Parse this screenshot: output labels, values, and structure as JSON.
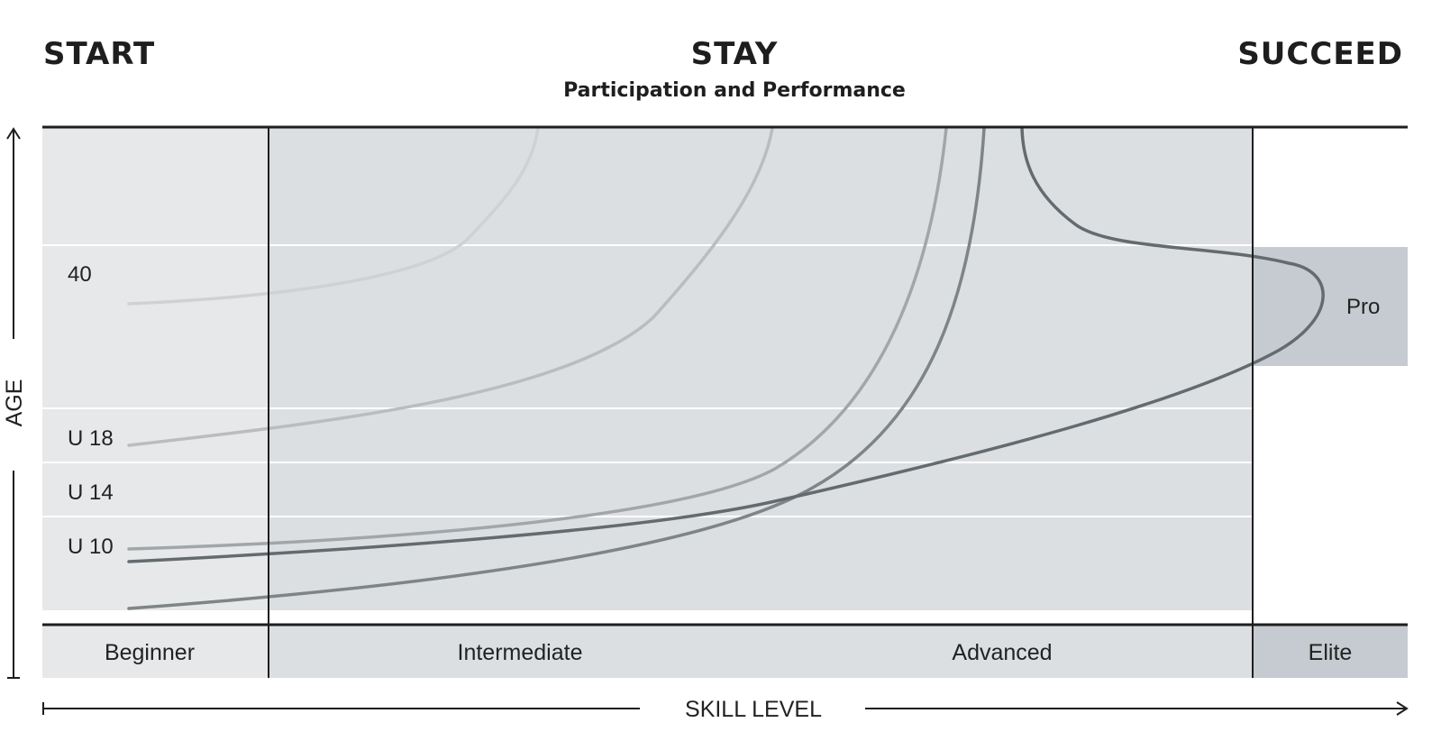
{
  "header": {
    "start": "START",
    "stay": "STAY",
    "stay_subtitle": "Participation and Performance",
    "succeed": "SUCCEED"
  },
  "age_labels": {
    "age40": "40",
    "u18": "U 18",
    "u14": "U 14",
    "u10": "U 10",
    "pro": "Pro"
  },
  "skill_levels": {
    "beginner": "Beginner",
    "intermediate": "Intermediate",
    "advanced": "Advanced",
    "elite": "Elite"
  },
  "axes": {
    "y_label": "AGE",
    "x_label": "SKILL LEVEL"
  },
  "colors": {
    "beginner_bg": "#e6e8ea",
    "stay_bg": "#dcdfe2",
    "elite_bg": "#c5cbd0",
    "ink": "#1e1e1e",
    "curve_lightest": "#cfd2d4",
    "curve_light": "#babdbf",
    "curve_mid": "#a2a6a8",
    "curve_dark": "#7f8587",
    "curve_darkest": "#646b6e"
  }
}
